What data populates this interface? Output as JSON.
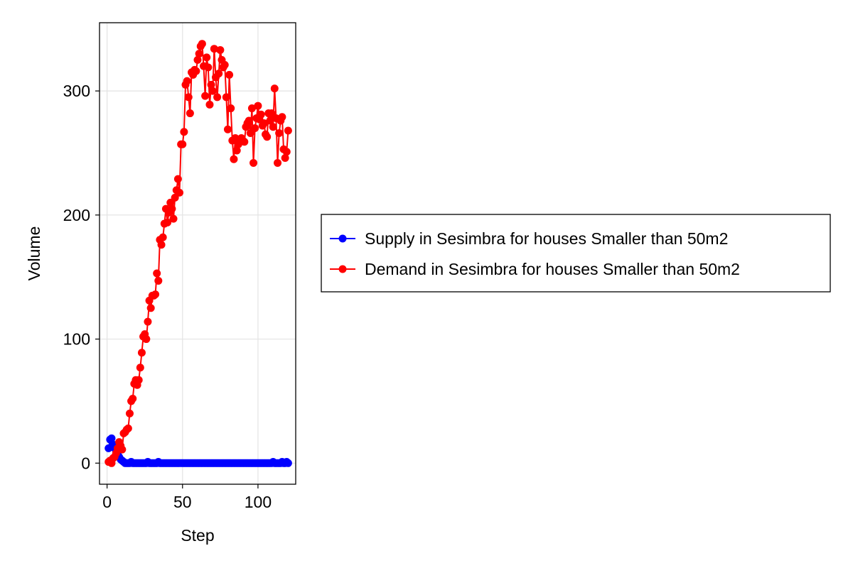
{
  "chart_data": {
    "type": "line",
    "title": "",
    "xlabel": "Step",
    "ylabel": "Volume",
    "xlim": [
      -5,
      125
    ],
    "ylim": [
      -17,
      355
    ],
    "x_ticks": [
      0,
      50,
      100
    ],
    "y_ticks": [
      0,
      100,
      200,
      300
    ],
    "x_tick_labels": [
      "0",
      "50",
      "100"
    ],
    "y_tick_labels": [
      "0",
      "100",
      "200",
      "300"
    ],
    "grid": true,
    "legend_position": "right-outside",
    "markers": true,
    "series": [
      {
        "name": "Supply in Sesimbra for houses Smaller than 50m2",
        "color": "#0000ff",
        "x": [
          1,
          2,
          3,
          4,
          5,
          6,
          7,
          8,
          9,
          10,
          11,
          12,
          13,
          14,
          15,
          16,
          17,
          18,
          19,
          20,
          21,
          22,
          23,
          24,
          25,
          26,
          27,
          28,
          29,
          30,
          31,
          32,
          33,
          34,
          35,
          36,
          37,
          38,
          39,
          40,
          41,
          42,
          43,
          44,
          45,
          46,
          47,
          48,
          49,
          50,
          51,
          52,
          53,
          54,
          55,
          56,
          57,
          58,
          59,
          60,
          61,
          62,
          63,
          64,
          65,
          66,
          67,
          68,
          69,
          70,
          71,
          72,
          73,
          74,
          75,
          76,
          77,
          78,
          79,
          80,
          81,
          82,
          83,
          84,
          85,
          86,
          87,
          88,
          89,
          90,
          91,
          92,
          93,
          94,
          95,
          96,
          97,
          98,
          99,
          100,
          101,
          102,
          103,
          104,
          105,
          106,
          107,
          108,
          109,
          110,
          111,
          112,
          113,
          114,
          115,
          116,
          117,
          118,
          119,
          120
        ],
        "y": [
          12,
          19,
          20,
          15,
          12,
          10,
          8,
          5,
          3,
          2,
          1,
          0,
          0,
          0,
          0,
          1,
          0,
          0,
          0,
          0,
          0,
          0,
          0,
          0,
          0,
          0,
          1,
          0,
          0,
          0,
          0,
          0,
          0,
          1,
          0,
          0,
          0,
          0,
          0,
          0,
          0,
          0,
          0,
          0,
          0,
          0,
          0,
          0,
          0,
          0,
          0,
          0,
          0,
          0,
          0,
          0,
          0,
          0,
          0,
          0,
          0,
          0,
          0,
          0,
          0,
          0,
          0,
          0,
          0,
          0,
          0,
          0,
          0,
          0,
          0,
          0,
          0,
          0,
          0,
          0,
          0,
          0,
          0,
          0,
          0,
          0,
          0,
          0,
          0,
          0,
          0,
          0,
          0,
          0,
          0,
          0,
          0,
          0,
          0,
          0,
          0,
          0,
          0,
          0,
          0,
          0,
          0,
          0,
          0,
          1,
          0,
          0,
          0,
          0,
          0,
          1,
          0,
          0,
          1,
          0
        ]
      },
      {
        "name": "Demand in Sesimbra for houses Smaller than 50m2",
        "color": "#ff0000",
        "x": [
          1,
          2,
          3,
          4,
          5,
          6,
          7,
          8,
          9,
          10,
          11,
          12,
          13,
          14,
          15,
          16,
          17,
          18,
          19,
          20,
          21,
          22,
          23,
          24,
          25,
          26,
          27,
          28,
          29,
          30,
          31,
          32,
          33,
          34,
          35,
          36,
          37,
          38,
          39,
          40,
          41,
          42,
          43,
          44,
          45,
          46,
          47,
          48,
          49,
          50,
          51,
          52,
          53,
          54,
          55,
          56,
          57,
          58,
          59,
          60,
          61,
          62,
          63,
          64,
          65,
          66,
          67,
          68,
          69,
          70,
          71,
          72,
          73,
          74,
          75,
          76,
          77,
          78,
          79,
          80,
          81,
          82,
          83,
          84,
          85,
          86,
          87,
          88,
          89,
          90,
          91,
          92,
          93,
          94,
          95,
          96,
          97,
          98,
          99,
          100,
          101,
          102,
          103,
          104,
          105,
          106,
          107,
          108,
          109,
          110,
          111,
          112,
          113,
          114,
          115,
          116,
          117,
          118,
          119,
          120
        ],
        "y": [
          1,
          2,
          0,
          4,
          5,
          8,
          12,
          17,
          14,
          11,
          24,
          25,
          27,
          28,
          40,
          50,
          52,
          64,
          67,
          63,
          67,
          77,
          89,
          102,
          104,
          100,
          114,
          131,
          125,
          135,
          135,
          136,
          153,
          147,
          180,
          176,
          182,
          193,
          205,
          194,
          202,
          210,
          205,
          197,
          214,
          220,
          229,
          218,
          257,
          257,
          267,
          305,
          308,
          295,
          282,
          315,
          313,
          317,
          316,
          325,
          330,
          336,
          338,
          320,
          296,
          327,
          319,
          289,
          305,
          300,
          334,
          311,
          295,
          314,
          333,
          325,
          319,
          321,
          295,
          269,
          313,
          286,
          260,
          245,
          262,
          252,
          257,
          261,
          262,
          260,
          259,
          271,
          274,
          276,
          266,
          286,
          242,
          270,
          278,
          288,
          277,
          281,
          272,
          274,
          265,
          263,
          282,
          276,
          282,
          271,
          302,
          278,
          242,
          266,
          276,
          279,
          253,
          246,
          251,
          268
        ]
      }
    ]
  }
}
